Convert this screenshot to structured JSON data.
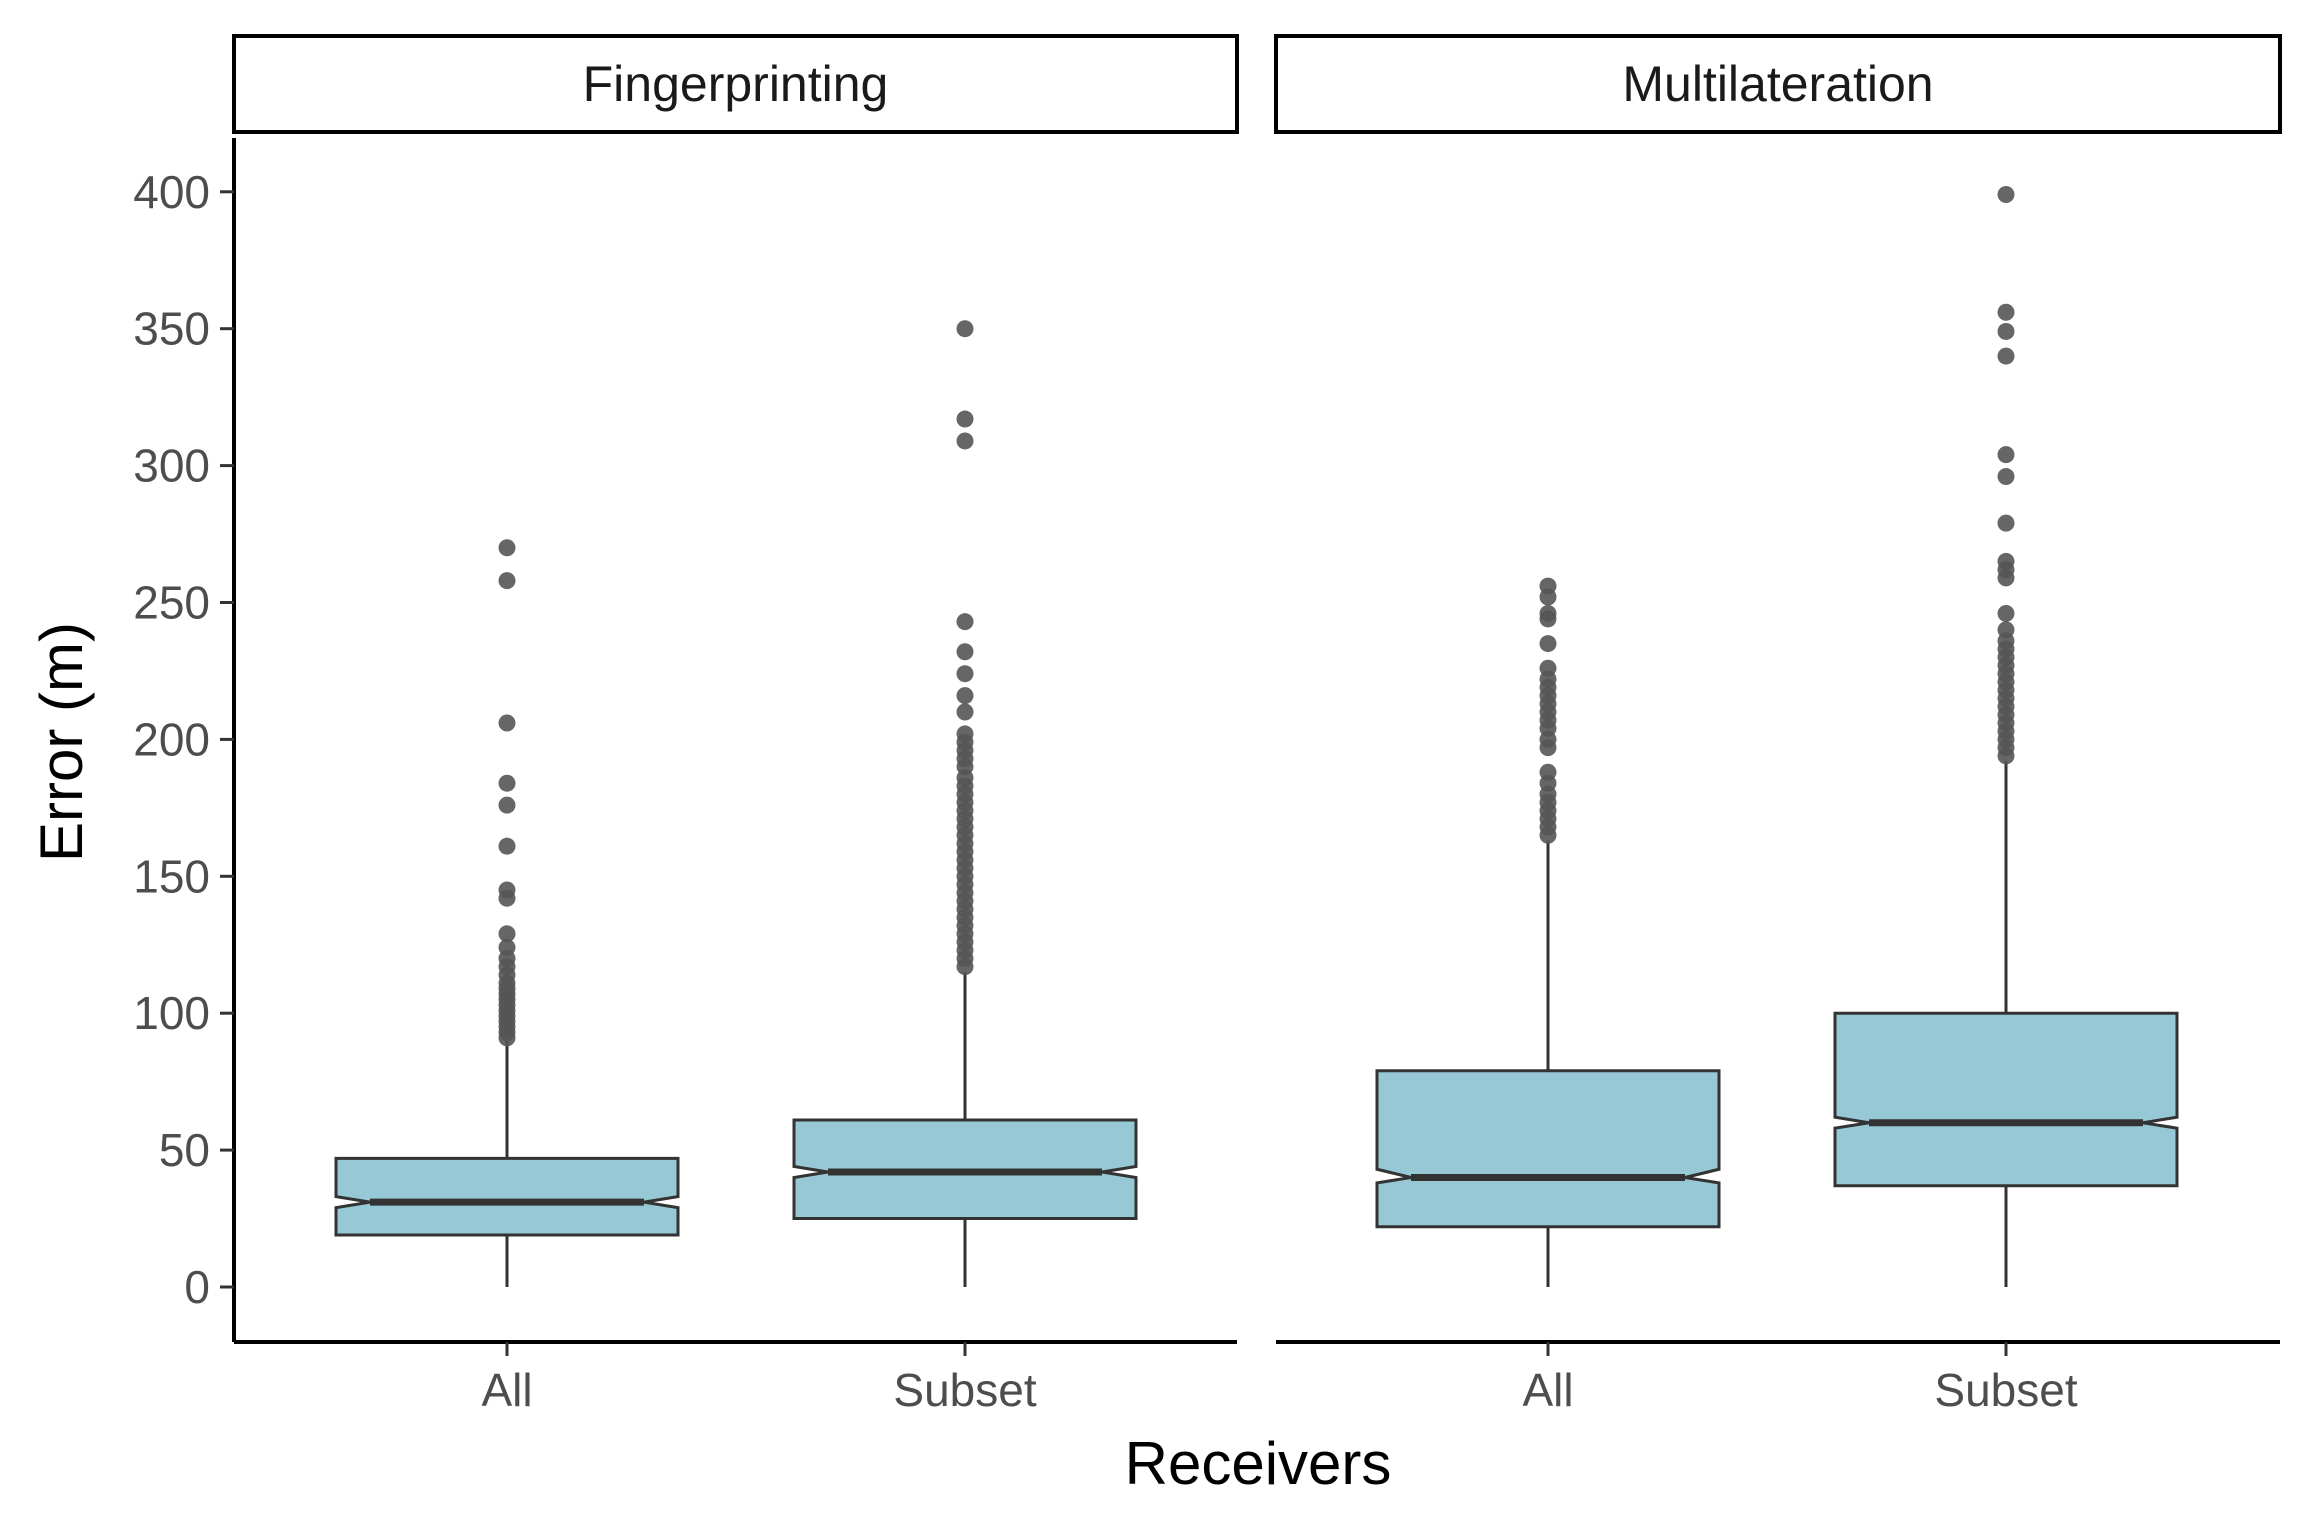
{
  "chart_data": {
    "type": "boxplot",
    "xlabel": "Receivers",
    "ylabel": "Error (m)",
    "ylim": [
      -20,
      420
    ],
    "yticks": [
      0,
      50,
      100,
      150,
      200,
      250,
      300,
      350,
      400
    ],
    "categories": [
      "All",
      "Subset"
    ],
    "notched": true,
    "box_fill": "#96c8d5",
    "line_color": "#333333",
    "point_color": "#555555",
    "grid": false,
    "legend": "none",
    "facets": [
      {
        "label": "Fingerprinting",
        "boxes": [
          {
            "category": "All",
            "min": 0,
            "q1": 19,
            "median": 31,
            "q3": 47,
            "upper_whisker": 90,
            "notch_low": 29,
            "notch_high": 33,
            "outliers": [
              91,
              93,
              95,
              97,
              99,
              101,
              103,
              105,
              107,
              109,
              111,
              114,
              117,
              120,
              124,
              129,
              142,
              145,
              161,
              176,
              184,
              206,
              258,
              270
            ]
          },
          {
            "category": "Subset",
            "min": 0,
            "q1": 25,
            "median": 42,
            "q3": 61,
            "upper_whisker": 115,
            "notch_low": 40,
            "notch_high": 44,
            "outliers": [
              117,
              120,
              123,
              126,
              129,
              132,
              135,
              138,
              141,
              144,
              147,
              150,
              153,
              156,
              159,
              162,
              165,
              168,
              171,
              174,
              177,
              180,
              183,
              186,
              190,
              193,
              196,
              199,
              202,
              210,
              216,
              224,
              232,
              243,
              309,
              317,
              350
            ]
          }
        ]
      },
      {
        "label": "Multilateration",
        "boxes": [
          {
            "category": "All",
            "min": 0,
            "q1": 22,
            "median": 40,
            "q3": 79,
            "upper_whisker": 163,
            "notch_low": 38,
            "notch_high": 43,
            "outliers": [
              165,
              168,
              171,
              174,
              177,
              180,
              184,
              188,
              197,
              200,
              204,
              207,
              210,
              213,
              216,
              219,
              222,
              226,
              235,
              244,
              246,
              252,
              256
            ]
          },
          {
            "category": "Subset",
            "min": 0,
            "q1": 37,
            "median": 60,
            "q3": 100,
            "upper_whisker": 192,
            "notch_low": 58,
            "notch_high": 62,
            "outliers": [
              194,
              197,
              200,
              203,
              206,
              209,
              212,
              215,
              218,
              221,
              224,
              227,
              230,
              233,
              236,
              240,
              246,
              259,
              262,
              265,
              279,
              296,
              304,
              340,
              349,
              356,
              399
            ]
          }
        ]
      }
    ]
  }
}
